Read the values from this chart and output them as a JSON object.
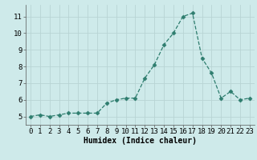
{
  "x": [
    0,
    1,
    2,
    3,
    4,
    5,
    6,
    7,
    8,
    9,
    10,
    11,
    12,
    13,
    14,
    15,
    16,
    17,
    18,
    19,
    20,
    21,
    22,
    23
  ],
  "y": [
    5.0,
    5.1,
    5.0,
    5.1,
    5.2,
    5.2,
    5.2,
    5.2,
    5.8,
    6.0,
    6.1,
    6.1,
    7.3,
    8.1,
    9.3,
    10.0,
    11.0,
    11.2,
    8.5,
    7.6,
    6.1,
    6.5,
    6.0,
    6.1
  ],
  "line_color": "#2e7d6e",
  "marker": "D",
  "marker_size": 2.5,
  "bg_color": "#ceeaea",
  "grid_color": "#b8d4d4",
  "xlabel": "Humidex (Indice chaleur)",
  "xlabel_fontsize": 7,
  "tick_fontsize": 6.5,
  "ylim": [
    4.5,
    11.7
  ],
  "xlim": [
    -0.5,
    23.5
  ],
  "yticks": [
    5,
    6,
    7,
    8,
    9,
    10,
    11
  ],
  "xticks": [
    0,
    1,
    2,
    3,
    4,
    5,
    6,
    7,
    8,
    9,
    10,
    11,
    12,
    13,
    14,
    15,
    16,
    17,
    18,
    19,
    20,
    21,
    22,
    23
  ]
}
